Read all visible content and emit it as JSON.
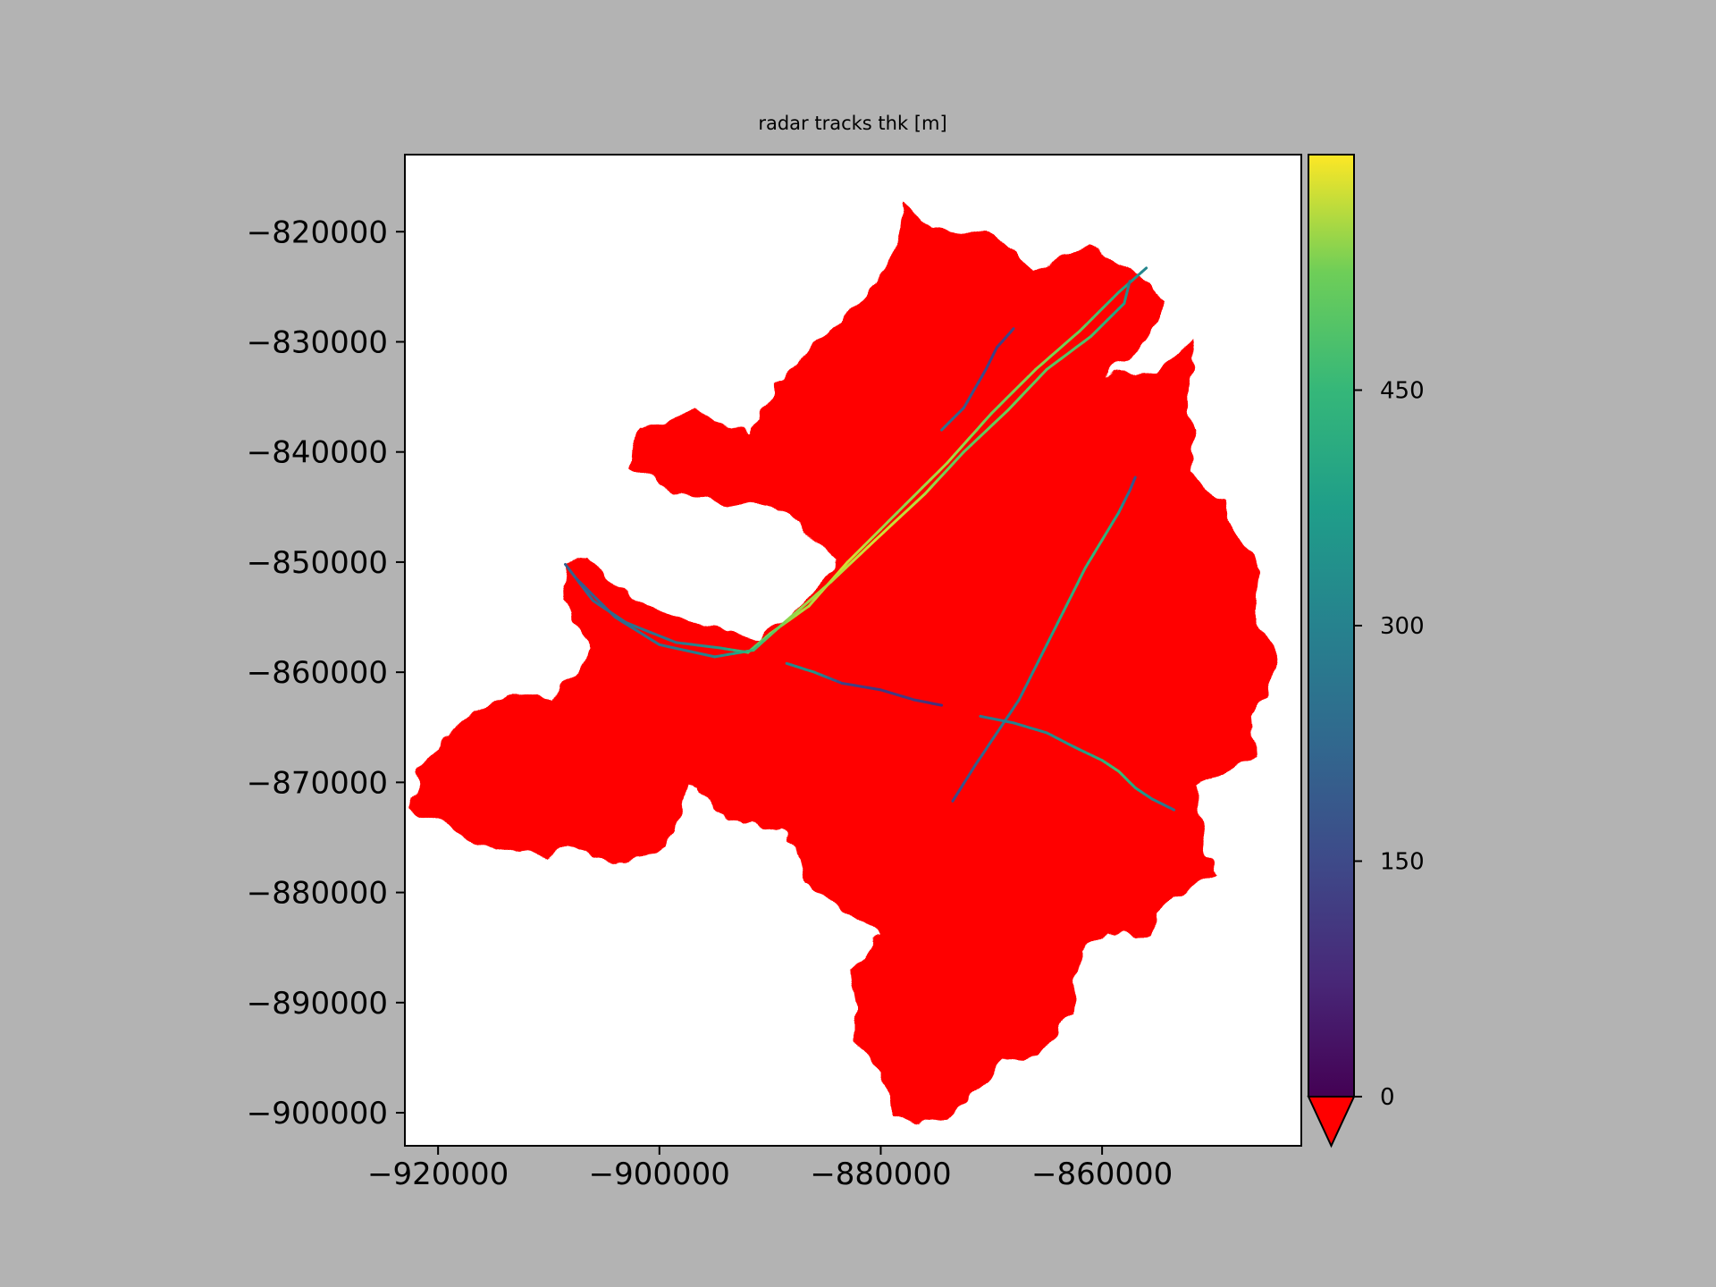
{
  "figure": {
    "background": "#b3b3b3"
  },
  "chart_data": {
    "type": "heatmap",
    "title": "radar tracks thk [m]",
    "xlabel": "",
    "ylabel": "",
    "xlim": [
      -923000,
      -842000
    ],
    "ylim": [
      -903000,
      -813000
    ],
    "x_ticks": [
      -920000,
      -900000,
      -880000,
      -860000
    ],
    "x_tick_labels": [
      "−920000",
      "−900000",
      "−880000",
      "−860000"
    ],
    "y_ticks": [
      -820000,
      -830000,
      -840000,
      -850000,
      -860000,
      -870000,
      -880000,
      -890000,
      -900000
    ],
    "y_tick_labels": [
      "−820000",
      "−830000",
      "−840000",
      "−850000",
      "−860000",
      "−870000",
      "−880000",
      "−890000",
      "−900000"
    ],
    "grid": false,
    "colormap": "viridis",
    "mask_color": "#ff0000",
    "colorbar": {
      "vmin": 0,
      "vmax": 600,
      "ticks": [
        0,
        150,
        300,
        450
      ],
      "tick_labels": [
        "0",
        "150",
        "300",
        "450"
      ],
      "extend": "min",
      "under_color": "#ff0000"
    },
    "glacier_mask_outline": [
      [
        -908500,
        -850200
      ],
      [
        -906500,
        -849500
      ],
      [
        -904000,
        -852000
      ],
      [
        -901000,
        -854000
      ],
      [
        -896000,
        -856000
      ],
      [
        -891000,
        -856800
      ],
      [
        -887000,
        -854000
      ],
      [
        -884000,
        -850000
      ],
      [
        -889000,
        -845000
      ],
      [
        -894000,
        -844500
      ],
      [
        -899000,
        -843500
      ],
      [
        -902500,
        -841500
      ],
      [
        -902000,
        -837500
      ],
      [
        -896500,
        -836200
      ],
      [
        -892000,
        -838500
      ],
      [
        -889500,
        -834000
      ],
      [
        -886000,
        -830000
      ],
      [
        -882000,
        -826500
      ],
      [
        -879500,
        -823000
      ],
      [
        -877500,
        -817500
      ],
      [
        -875500,
        -819500
      ],
      [
        -870000,
        -820500
      ],
      [
        -866000,
        -823500
      ],
      [
        -861500,
        -821200
      ],
      [
        -857000,
        -824000
      ],
      [
        -855000,
        -825000
      ],
      [
        -854200,
        -826500
      ],
      [
        -856000,
        -830000
      ],
      [
        -859500,
        -833000
      ],
      [
        -855000,
        -832500
      ],
      [
        -851700,
        -830000
      ],
      [
        -852500,
        -834500
      ],
      [
        -851500,
        -838000
      ],
      [
        -852000,
        -842000
      ],
      [
        -849000,
        -844500
      ],
      [
        -847500,
        -848000
      ],
      [
        -845500,
        -850500
      ],
      [
        -846000,
        -855500
      ],
      [
        -844000,
        -859500
      ],
      [
        -846500,
        -864000
      ],
      [
        -846200,
        -867500
      ],
      [
        -849000,
        -869500
      ],
      [
        -851500,
        -870500
      ],
      [
        -851000,
        -874000
      ],
      [
        -850000,
        -878500
      ],
      [
        -853500,
        -880500
      ],
      [
        -855000,
        -882000
      ],
      [
        -855500,
        -884000
      ],
      [
        -857000,
        -884000
      ],
      [
        -859500,
        -883500
      ],
      [
        -862000,
        -885000
      ],
      [
        -862500,
        -891000
      ],
      [
        -866000,
        -895000
      ],
      [
        -869000,
        -895500
      ],
      [
        -872000,
        -898500
      ],
      [
        -874000,
        -900500
      ],
      [
        -876500,
        -901000
      ],
      [
        -879000,
        -900000
      ],
      [
        -880000,
        -896000
      ],
      [
        -882500,
        -894000
      ],
      [
        -882500,
        -890000
      ],
      [
        -883000,
        -887000
      ],
      [
        -880000,
        -884000
      ],
      [
        -884000,
        -881000
      ],
      [
        -886500,
        -879500
      ],
      [
        -887000,
        -877000
      ],
      [
        -889000,
        -874500
      ],
      [
        -892500,
        -874000
      ],
      [
        -895000,
        -872500
      ],
      [
        -896500,
        -870500
      ],
      [
        -897500,
        -870500
      ],
      [
        -898500,
        -874000
      ],
      [
        -899500,
        -876000
      ],
      [
        -901500,
        -877000
      ],
      [
        -904000,
        -877500
      ],
      [
        -906000,
        -877000
      ],
      [
        -908000,
        -876000
      ],
      [
        -910000,
        -876500
      ],
      [
        -912000,
        -876000
      ],
      [
        -915000,
        -876500
      ],
      [
        -917000,
        -875000
      ],
      [
        -920000,
        -873500
      ],
      [
        -922500,
        -872500
      ],
      [
        -921500,
        -868500
      ],
      [
        -919500,
        -866000
      ],
      [
        -917000,
        -863500
      ],
      [
        -913500,
        -862000
      ],
      [
        -910000,
        -862500
      ],
      [
        -908000,
        -860500
      ],
      [
        -906000,
        -858000
      ],
      [
        -908800,
        -853500
      ]
    ],
    "tracks": [
      {
        "points": [
          [
            -908500,
            -850200,
            200
          ],
          [
            -906000,
            -853500,
            230
          ],
          [
            -903000,
            -855500,
            250
          ],
          [
            -898500,
            -857300,
            260
          ],
          [
            -894500,
            -857800,
            360
          ],
          [
            -892000,
            -858200,
            480
          ],
          [
            -890000,
            -856500,
            540
          ],
          [
            -886500,
            -854000,
            560
          ],
          [
            -883000,
            -850000,
            580
          ],
          [
            -878500,
            -845500,
            540
          ],
          [
            -874000,
            -841000,
            560
          ],
          [
            -870000,
            -836500,
            520
          ],
          [
            -866000,
            -832500,
            540
          ],
          [
            -862000,
            -829000,
            520
          ],
          [
            -858500,
            -825500,
            420
          ],
          [
            -856000,
            -823300,
            300
          ]
        ]
      },
      {
        "points": [
          [
            -907500,
            -851500,
            180
          ],
          [
            -904000,
            -855000,
            230
          ],
          [
            -900000,
            -857500,
            260
          ],
          [
            -895000,
            -858600,
            300
          ],
          [
            -891500,
            -858000,
            450
          ],
          [
            -888500,
            -855300,
            540
          ],
          [
            -884500,
            -851800,
            560
          ],
          [
            -880500,
            -848000,
            580
          ],
          [
            -876000,
            -843800,
            560
          ],
          [
            -872500,
            -840000,
            500
          ],
          [
            -868500,
            -836200,
            520
          ],
          [
            -865000,
            -832500,
            500
          ],
          [
            -861000,
            -829500,
            480
          ],
          [
            -858000,
            -826500,
            380
          ],
          [
            -857500,
            -824500,
            280
          ]
        ]
      },
      {
        "points": [
          [
            -888500,
            -859200,
            300
          ],
          [
            -886000,
            -860000,
            360
          ],
          [
            -883500,
            -861000,
            140
          ],
          [
            -880000,
            -861600,
            110
          ],
          [
            -877000,
            -862500,
            120
          ],
          [
            -874500,
            -863000,
            90
          ]
        ]
      },
      {
        "points": [
          [
            -873500,
            -871700,
            140
          ],
          [
            -871500,
            -868500,
            200
          ],
          [
            -869500,
            -865500,
            260
          ],
          [
            -867500,
            -862500,
            280
          ],
          [
            -866000,
            -859500,
            330
          ],
          [
            -864500,
            -856500,
            380
          ],
          [
            -863000,
            -853500,
            420
          ],
          [
            -861500,
            -850500,
            430
          ],
          [
            -860000,
            -848000,
            450
          ],
          [
            -858500,
            -845500,
            380
          ],
          [
            -857500,
            -843500,
            220
          ],
          [
            -857000,
            -842300,
            160
          ]
        ]
      },
      {
        "points": [
          [
            -871000,
            -864000,
            270
          ],
          [
            -868000,
            -864600,
            300
          ],
          [
            -865000,
            -865500,
            320
          ],
          [
            -862500,
            -866800,
            360
          ],
          [
            -860000,
            -868000,
            420
          ],
          [
            -858500,
            -869000,
            470
          ],
          [
            -857000,
            -870500,
            400
          ],
          [
            -855500,
            -871500,
            320
          ],
          [
            -853500,
            -872500,
            240
          ]
        ]
      },
      {
        "points": [
          [
            -868000,
            -828800,
            150
          ],
          [
            -869500,
            -830500,
            120
          ],
          [
            -870500,
            -832500,
            140
          ],
          [
            -872500,
            -836000,
            200
          ],
          [
            -874500,
            -838000,
            260
          ]
        ]
      }
    ]
  }
}
